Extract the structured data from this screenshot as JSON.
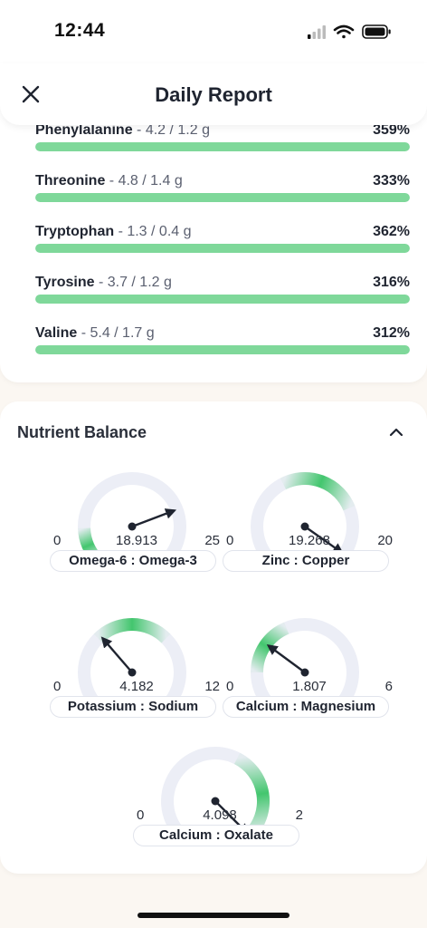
{
  "status": {
    "time": "12:44"
  },
  "header": {
    "title": "Daily Report"
  },
  "nutrients": [
    {
      "name": "Phenylalanine",
      "amount": "- 4.2 / 1.2 g",
      "percent": "359%",
      "fill": 1.0
    },
    {
      "name": "Threonine",
      "amount": "- 4.8 / 1.4 g",
      "percent": "333%",
      "fill": 1.0
    },
    {
      "name": "Tryptophan",
      "amount": "- 1.3 / 0.4 g",
      "percent": "362%",
      "fill": 1.0
    },
    {
      "name": "Tyrosine",
      "amount": "- 3.7 / 1.2 g",
      "percent": "316%",
      "fill": 1.0
    },
    {
      "name": "Valine",
      "amount": "- 5.4 / 1.7 g",
      "percent": "312%",
      "fill": 1.0
    }
  ],
  "balance": {
    "title": "Nutrient Balance",
    "gauges": [
      {
        "label": "Omega-6 : Omega-3",
        "min": "0",
        "max": "25",
        "value": "18.913",
        "value_num": 18.913,
        "range": [
          0,
          25
        ],
        "optimal": [
          0,
          4
        ]
      },
      {
        "label": "Zinc : Copper",
        "min": "0",
        "max": "20",
        "value": "19.268",
        "value_num": 19.268,
        "range": [
          0,
          20
        ],
        "optimal": [
          8,
          15
        ]
      },
      {
        "label": "Potassium : Sodium",
        "min": "0",
        "max": "12",
        "value": "4.182",
        "value_num": 4.182,
        "range": [
          0,
          12
        ],
        "optimal": [
          4,
          8
        ]
      },
      {
        "label": "Calcium : Magnesium",
        "min": "0",
        "max": "6",
        "value": "1.807",
        "value_num": 1.807,
        "range": [
          0,
          6
        ],
        "optimal": [
          1,
          2.5
        ]
      },
      {
        "label": "Calcium : Oxalate",
        "min": "0",
        "max": "2",
        "value": "4.098",
        "value_num": 4.098,
        "range": [
          0,
          2
        ],
        "optimal": [
          1.2,
          2
        ]
      }
    ]
  },
  "colors": {
    "accent_green": "#7fd89a",
    "gauge_green": "#43c66e",
    "track": "#e8ebf3",
    "needle": "#1f2430"
  },
  "icons": {
    "close": "close-icon",
    "collapse": "chevron-up-icon"
  }
}
